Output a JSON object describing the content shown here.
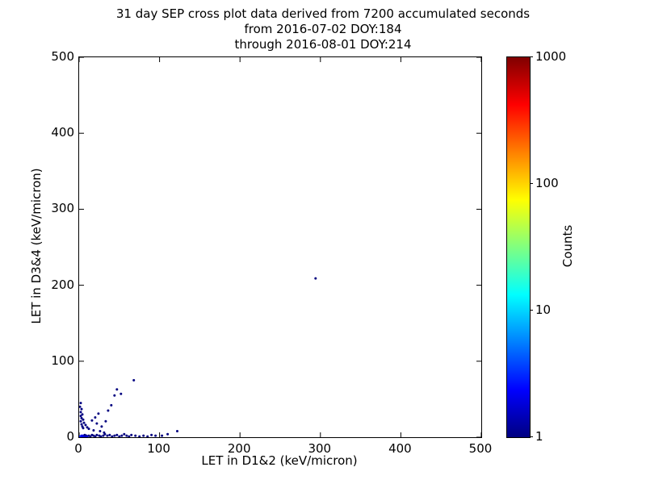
{
  "chart_data": {
    "type": "scatter",
    "title": "31 day SEP cross plot data derived from 7200 accumulated seconds",
    "title_lines": [
      "31 day SEP cross plot data derived from 7200 accumulated seconds",
      "from 2016-07-02 DOY:184",
      "through 2016-08-01 DOY:214"
    ],
    "xlabel": "LET in D1&2 (keV/micron)",
    "ylabel": "LET in D3&4 (keV/micron)",
    "xlim": [
      0,
      500
    ],
    "ylim": [
      0,
      500
    ],
    "x_ticks": [
      0,
      100,
      200,
      300,
      400,
      500
    ],
    "y_ticks": [
      0,
      100,
      200,
      300,
      400,
      500
    ],
    "grid": false,
    "colorbar": {
      "label": "Counts",
      "scale": "log",
      "min": 1,
      "max": 1000,
      "ticks": [
        1,
        10,
        100,
        1000
      ],
      "stops": [
        {
          "pos": 0.0,
          "color": "#000080"
        },
        {
          "pos": 0.125,
          "color": "#0000ff"
        },
        {
          "pos": 0.25,
          "color": "#0080ff"
        },
        {
          "pos": 0.375,
          "color": "#00ffff"
        },
        {
          "pos": 0.5,
          "color": "#80ff80"
        },
        {
          "pos": 0.625,
          "color": "#ffff00"
        },
        {
          "pos": 0.75,
          "color": "#ff8000"
        },
        {
          "pos": 0.875,
          "color": "#ff0000"
        },
        {
          "pos": 1.0,
          "color": "#800000"
        }
      ]
    },
    "points": [
      [
        294,
        209,
        1
      ],
      [
        2,
        45,
        1
      ],
      [
        1,
        40,
        1
      ],
      [
        3,
        37,
        1
      ],
      [
        2,
        33,
        1
      ],
      [
        4,
        30,
        1
      ],
      [
        2,
        28,
        1
      ],
      [
        3,
        25,
        1
      ],
      [
        5,
        23,
        1
      ],
      [
        2,
        21,
        1
      ],
      [
        6,
        19,
        1
      ],
      [
        3,
        17,
        1
      ],
      [
        8,
        16,
        1
      ],
      [
        4,
        14,
        1
      ],
      [
        10,
        13,
        1
      ],
      [
        5,
        12,
        1
      ],
      [
        12,
        11,
        1
      ],
      [
        16,
        22,
        1
      ],
      [
        20,
        26,
        1
      ],
      [
        24,
        31,
        1
      ],
      [
        22,
        18,
        1
      ],
      [
        28,
        14,
        1
      ],
      [
        33,
        21,
        1
      ],
      [
        36,
        35,
        1
      ],
      [
        40,
        42,
        1
      ],
      [
        44,
        55,
        1
      ],
      [
        47,
        63,
        1
      ],
      [
        52,
        57,
        1
      ],
      [
        68,
        75,
        1
      ],
      [
        18,
        9,
        1
      ],
      [
        26,
        8,
        1
      ],
      [
        31,
        6,
        1
      ],
      [
        1,
        1,
        3
      ],
      [
        2,
        1,
        3
      ],
      [
        3,
        2,
        2
      ],
      [
        4,
        1,
        2
      ],
      [
        5,
        2,
        2
      ],
      [
        6,
        1,
        2
      ],
      [
        7,
        3,
        1
      ],
      [
        8,
        1,
        2
      ],
      [
        9,
        2,
        1
      ],
      [
        10,
        1,
        2
      ],
      [
        12,
        2,
        1
      ],
      [
        14,
        1,
        1
      ],
      [
        16,
        3,
        1
      ],
      [
        18,
        2,
        1
      ],
      [
        20,
        1,
        1
      ],
      [
        22,
        3,
        1
      ],
      [
        25,
        2,
        1
      ],
      [
        27,
        1,
        1
      ],
      [
        30,
        2,
        1
      ],
      [
        32,
        4,
        1
      ],
      [
        35,
        2,
        1
      ],
      [
        38,
        3,
        1
      ],
      [
        41,
        1,
        1
      ],
      [
        44,
        2,
        1
      ],
      [
        47,
        3,
        1
      ],
      [
        50,
        1,
        1
      ],
      [
        53,
        2,
        1
      ],
      [
        56,
        4,
        1
      ],
      [
        59,
        2,
        1
      ],
      [
        62,
        1,
        1
      ],
      [
        65,
        3,
        1
      ],
      [
        70,
        2,
        1
      ],
      [
        75,
        1,
        1
      ],
      [
        80,
        2,
        1
      ],
      [
        85,
        1,
        1
      ],
      [
        90,
        3,
        1
      ],
      [
        95,
        2,
        1
      ],
      [
        103,
        2,
        1
      ],
      [
        110,
        4,
        1
      ],
      [
        122,
        8,
        1
      ]
    ]
  }
}
